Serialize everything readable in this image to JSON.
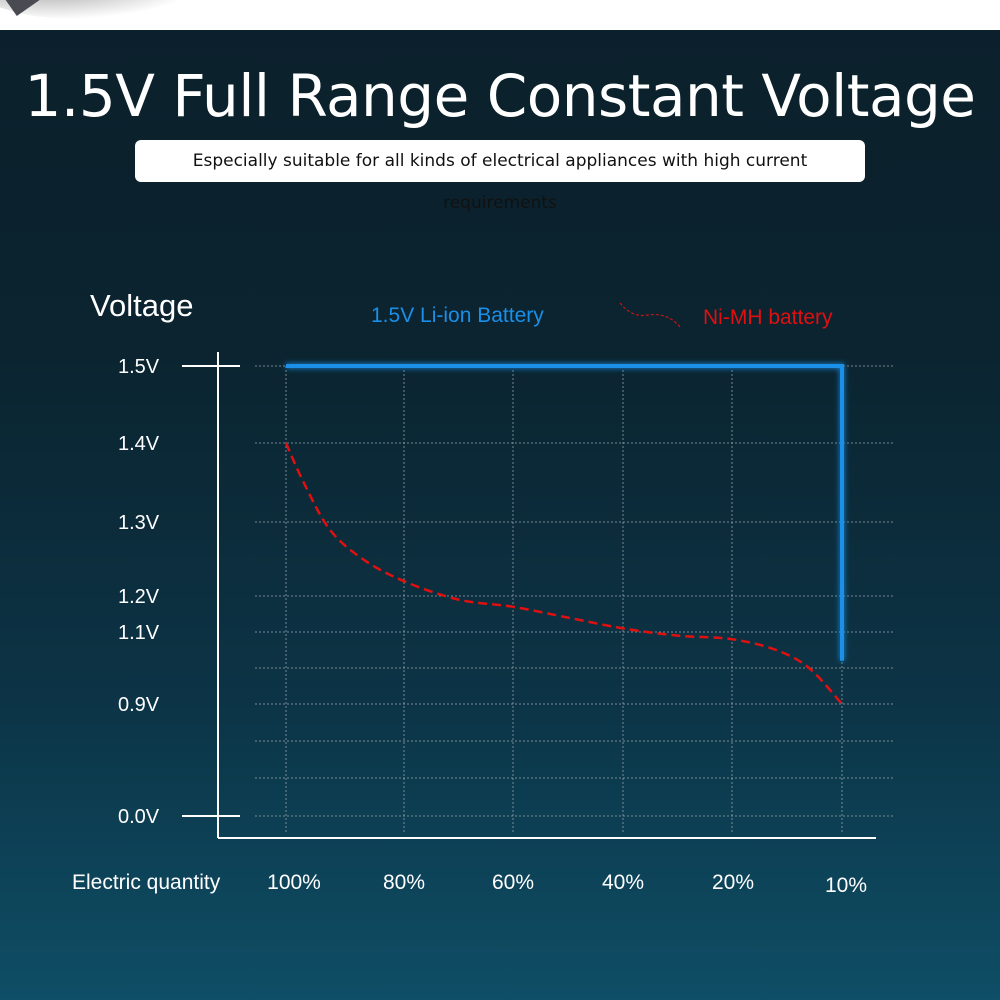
{
  "header": {
    "title": "1.5V Full Range Constant Voltage",
    "subtitle": "Especially suitable for all kinds of electrical appliances with high current requirements"
  },
  "chart_data": {
    "type": "line",
    "ylabel": "Voltage",
    "xlabel": "Electric quantity",
    "categories": [
      "100%",
      "80%",
      "60%",
      "40%",
      "20%",
      "10%"
    ],
    "y_ticks": [
      {
        "value": 1.5,
        "label": "1.5V"
      },
      {
        "value": 1.4,
        "label": "1.4V"
      },
      {
        "value": 1.3,
        "label": "1.3V"
      },
      {
        "value": 1.2,
        "label": "1.2V"
      },
      {
        "value": 1.1,
        "label": "1.1V"
      },
      {
        "value": 1.0,
        "label": ""
      },
      {
        "value": 0.9,
        "label": "0.9V"
      },
      {
        "value": 0.0,
        "label": "0.0V"
      }
    ],
    "grid": true,
    "legend_position": "top",
    "series": [
      {
        "name": "1.5V Li-ion Battery",
        "color": "#1a8fe8",
        "style": "solid",
        "points": [
          [
            0,
            1.5
          ],
          [
            5,
            1.5
          ],
          [
            5,
            1.02
          ]
        ]
      },
      {
        "name": "Ni-MH battery",
        "color": "#e01010",
        "style": "dashed",
        "points": [
          [
            0,
            1.4
          ],
          [
            0.15,
            1.35
          ],
          [
            0.37,
            1.29
          ],
          [
            0.65,
            1.25
          ],
          [
            1,
            1.22
          ],
          [
            1.5,
            1.19
          ],
          [
            2,
            1.17
          ],
          [
            2.5,
            1.14
          ],
          [
            3,
            1.11
          ],
          [
            3.5,
            1.09
          ],
          [
            4,
            1.08
          ],
          [
            4.4,
            1.05
          ],
          [
            4.7,
            1.0
          ],
          [
            5,
            0.9
          ]
        ]
      }
    ]
  }
}
